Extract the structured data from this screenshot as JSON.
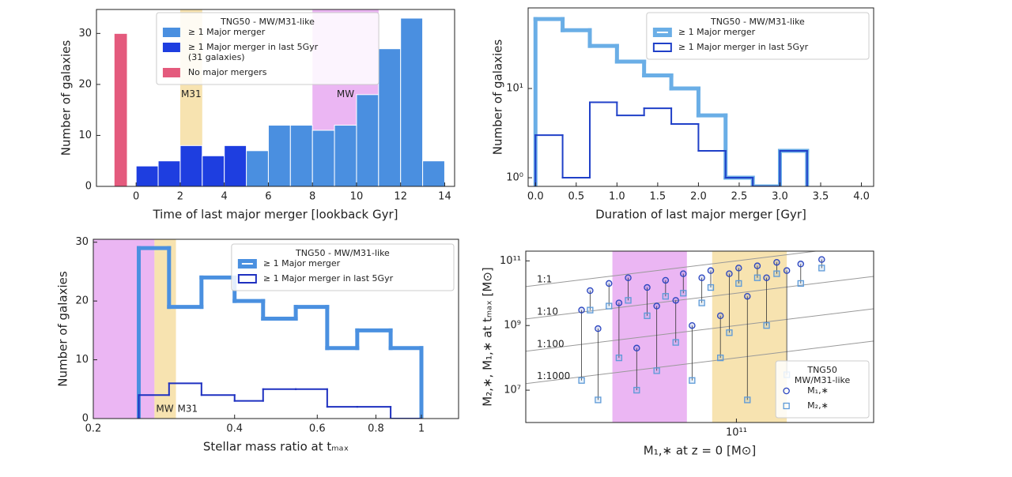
{
  "chart_data": [
    {
      "type": "histogram",
      "histtype": "bar",
      "xlabel": "Time of last major merger [lookback Gyr]",
      "ylabel": "Number of galaxies",
      "xlim": [
        -1.8,
        14.45
      ],
      "ylim": [
        0,
        34.7
      ],
      "xticks": [
        0,
        2,
        4,
        6,
        8,
        10,
        12,
        14
      ],
      "yticks": [
        0,
        10,
        20,
        30
      ],
      "legend": "upper center",
      "legend_title": "TNG50 - MW/M31-like",
      "bands": [
        {
          "label": "M31",
          "range": [
            2,
            3
          ],
          "color": "#f7e3b0",
          "label_color": "#e0a020"
        },
        {
          "label": "MW",
          "range": [
            8,
            11
          ],
          "color": "#ebb6f3",
          "label_color": "#b040e0"
        }
      ],
      "series": [
        {
          "name": "≥ 1 Major merger",
          "color": "#4a8fe0",
          "bins": [
            5,
            6,
            7,
            8,
            9,
            10,
            11,
            12,
            13,
            14
          ],
          "values": [
            7,
            12,
            12,
            11,
            12,
            18,
            27,
            33,
            5
          ]
        },
        {
          "name": "≥ 1 Major merger in last 5Gyr\n(31 galaxies)",
          "color": "#1e3ee0",
          "bins": [
            0,
            1,
            2,
            3,
            4,
            5
          ],
          "values": [
            4,
            5,
            8,
            6,
            8
          ]
        },
        {
          "name": "No major mergers",
          "color": "#e45a7d",
          "bins": [
            -1,
            -0.4
          ],
          "values": [
            30
          ]
        }
      ]
    },
    {
      "type": "histogram",
      "histtype": "step",
      "ylog": true,
      "xlabel": "Duration of last major merger [Gyr]",
      "ylabel": "Number of galaxies",
      "xlim": [
        -0.09,
        4.15
      ],
      "ylim": [
        0.8,
        80
      ],
      "xticks": [
        {
          "value": 0,
          "label": "0.0"
        },
        0.5,
        {
          "value": 1,
          "label": "1.0"
        },
        1.5,
        {
          "value": 2,
          "label": "2.0"
        },
        2.5,
        {
          "value": 3,
          "label": "3.0"
        },
        3.5,
        {
          "value": 4,
          "label": "4.0"
        }
      ],
      "yticks": [
        {
          "value": 1,
          "label": "10⁰"
        },
        {
          "value": 10,
          "label": "10¹"
        }
      ],
      "legend": "upper right",
      "legend_title": "TNG50 - MW/M31-like",
      "bins": [
        0,
        0.333,
        0.667,
        1,
        1.333,
        1.667,
        2,
        2.333,
        2.667,
        3,
        3.333
      ],
      "series": [
        {
          "name": "≥ 1 Major merger",
          "color": "#6aaee6",
          "linewidth": 5,
          "values": [
            60,
            45,
            30,
            20,
            14,
            10,
            5,
            1,
            0,
            2
          ]
        },
        {
          "name": "≥ 1 Major merger in last 5Gyr",
          "color": "#2040c8",
          "linewidth": 2,
          "values": [
            3,
            1,
            7,
            5,
            6,
            4,
            2,
            1,
            0,
            2
          ]
        }
      ]
    },
    {
      "type": "histogram",
      "histtype": "step",
      "xlog": true,
      "xlabel": "Stellar mass ratio at tₘₐₓ",
      "ylabel": "Number of galaxies",
      "xlim": [
        0.2,
        1.2
      ],
      "ylim": [
        0,
        30.5
      ],
      "xticks": [
        0.2,
        0.4,
        0.6,
        0.8,
        1
      ],
      "yticks": [
        0,
        10,
        20,
        30
      ],
      "legend": "upper right",
      "legend_title": "TNG50 - MW/M31-like",
      "bands": [
        {
          "label": "MW",
          "range": [
            0.2,
            0.27
          ],
          "color": "#ebb6f3",
          "label_color": "#b040e0"
        },
        {
          "label": "M31",
          "range": [
            0.27,
            0.3
          ],
          "color": "#f7e3b0",
          "label_color": "#e0a020"
        }
      ],
      "bins": [
        0.25,
        0.29,
        0.34,
        0.4,
        0.46,
        0.54,
        0.63,
        0.73,
        0.86,
        1.0
      ],
      "series": [
        {
          "name": "≥ 1 Major merger",
          "color": "#4a90e0",
          "linewidth": 5,
          "values": [
            29,
            19,
            24,
            20,
            17,
            19,
            12,
            15,
            12
          ]
        },
        {
          "name": "≥ 1 Major merger in last 5Gyr",
          "color": "#1e30c0",
          "linewidth": 2,
          "values": [
            4,
            6,
            4,
            3,
            5,
            5,
            2,
            2,
            0
          ]
        }
      ]
    },
    {
      "type": "scatter",
      "xlog": true,
      "ylog": true,
      "xlabel": "M₁,∗ at z = 0 [M⊙]",
      "ylabel": "M₂,∗, M₁,∗ at tₘₐₓ [M⊙]",
      "xlim": [
        16000000000.0,
        330000000000.0
      ],
      "ylim": [
        1000000.0,
        200000000000.0
      ],
      "xticks": [
        {
          "value": 100000000000.0,
          "label": "10¹¹"
        }
      ],
      "yticks": [
        {
          "value": 10000000.0,
          "label": "10⁷"
        },
        {
          "value": 1000000000.0,
          "label": "10⁹"
        },
        {
          "value": 100000000000.0,
          "label": "10¹¹"
        }
      ],
      "legend": "lower right",
      "legend_title": "TNG50\nMW/M31-like",
      "bands": [
        {
          "range": [
            34000000000.0,
            65000000000.0
          ],
          "color": "#ebb6f3"
        },
        {
          "range": [
            81000000000.0,
            155000000000.0
          ],
          "color": "#f7e3b0"
        }
      ],
      "ratio_lines": [
        {
          "label": "1:1",
          "ratio": 1
        },
        {
          "label": "1:10",
          "ratio": 0.1
        },
        {
          "label": "1:100",
          "ratio": 0.01
        },
        {
          "label": "1:1000",
          "ratio": 0.001
        }
      ],
      "x": [
        26000000000.0,
        28000000000.0,
        30000000000.0,
        33000000000.0,
        36000000000.0,
        39000000000.0,
        42000000000.0,
        46000000000.0,
        50000000000.0,
        54000000000.0,
        59000000000.0,
        63000000000.0,
        68000000000.0,
        74000000000.0,
        80000000000.0,
        87000000000.0,
        94000000000.0,
        102000000000.0,
        110000000000.0,
        120000000000.0,
        130000000000.0,
        142000000000.0,
        155000000000.0,
        175000000000.0,
        210000000000.0
      ],
      "series": [
        {
          "name": "M₁,∗",
          "marker": "circle",
          "color": "#2a45c0",
          "values": [
            3000000000.0,
            12000000000.0,
            800000000.0,
            20000000000.0,
            5000000000.0,
            30000000000.0,
            200000000.0,
            15000000000.0,
            4000000000.0,
            25000000000.0,
            6000000000.0,
            40000000000.0,
            1000000000.0,
            30000000000.0,
            50000000000.0,
            2000000000.0,
            40000000000.0,
            60000000000.0,
            8000000000.0,
            70000000000.0,
            30000000000.0,
            90000000000.0,
            50000000000.0,
            80000000000.0,
            110000000000.0
          ]
        },
        {
          "name": "M₂,∗",
          "marker": "square",
          "color": "#5d9ad8",
          "values": [
            20000000.0,
            3000000000.0,
            5000000.0,
            4000000000.0,
            100000000.0,
            6000000000.0,
            10000000.0,
            2000000000.0,
            40000000.0,
            8000000000.0,
            300000000.0,
            10000000000.0,
            20000000.0,
            5000000000.0,
            15000000000.0,
            100000000.0,
            600000000.0,
            20000000000.0,
            5000000.0,
            30000000000.0,
            1000000000.0,
            40000000000.0,
            30000000.0,
            20000000000.0,
            60000000000.0
          ]
        }
      ]
    }
  ]
}
